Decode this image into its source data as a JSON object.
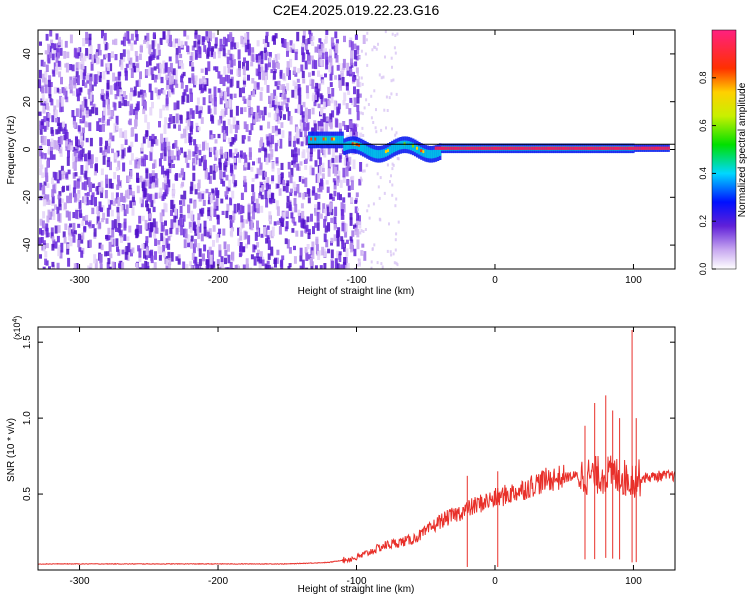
{
  "figure": {
    "title": "C2E4.2025.019.22.23.G16"
  },
  "chart_data": [
    {
      "type": "heatmap",
      "xlabel": "Height of straight line (km)",
      "ylabel": "Frequency (Hz)",
      "xlim": [
        -330,
        130
      ],
      "ylim": [
        -50,
        50
      ],
      "xticks": [
        -300,
        -200,
        -100,
        0,
        100
      ],
      "yticks": [
        -40,
        -20,
        0,
        20,
        40
      ],
      "reference_line_y": 0,
      "colorbar": {
        "label": "Normalized spectral amplitude",
        "range": [
          0,
          1
        ],
        "ticks": [
          "0.0",
          "0.2",
          "0.4",
          "0.6",
          "0.8"
        ]
      }
    },
    {
      "type": "line",
      "xlabel": "Height of straight line (km)",
      "ylabel": "SNR (10 * v/v)",
      "y_multiplier": "(x10",
      "y_multiplier_exp": "4",
      "y_multiplier_close": ")",
      "xlim": [
        -330,
        130
      ],
      "ylim": [
        0,
        1.6
      ],
      "xticks": [
        -300,
        -200,
        -100,
        0,
        100
      ],
      "yticks": [
        "0.5",
        "1.0",
        "1.5"
      ],
      "color": "#e8302a",
      "series": [
        {
          "x": [
            -330,
            -250,
            -150,
            -120,
            -100,
            -90,
            -80,
            -70,
            -60,
            -50,
            -40,
            -30,
            -20,
            -10,
            0,
            10,
            20,
            30,
            40,
            50,
            60,
            70,
            80,
            90,
            95,
            100,
            110,
            120,
            130
          ],
          "y": [
            0.04,
            0.04,
            0.04,
            0.05,
            0.08,
            0.12,
            0.16,
            0.18,
            0.2,
            0.25,
            0.32,
            0.36,
            0.4,
            0.44,
            0.47,
            0.5,
            0.53,
            0.57,
            0.6,
            0.61,
            0.62,
            0.62,
            0.63,
            0.62,
            0.6,
            0.6,
            0.61,
            0.62,
            0.62
          ]
        }
      ],
      "spikes": [
        {
          "x": -20,
          "y": 0.62
        },
        {
          "x": 2,
          "y": 0.65
        },
        {
          "x": 65,
          "y": 0.95
        },
        {
          "x": 72,
          "y": 1.1
        },
        {
          "x": 80,
          "y": 1.15
        },
        {
          "x": 85,
          "y": 1.05
        },
        {
          "x": 90,
          "y": 1.0
        },
        {
          "x": 99,
          "y": 1.58
        },
        {
          "x": 102,
          "y": 1.0
        }
      ]
    }
  ]
}
